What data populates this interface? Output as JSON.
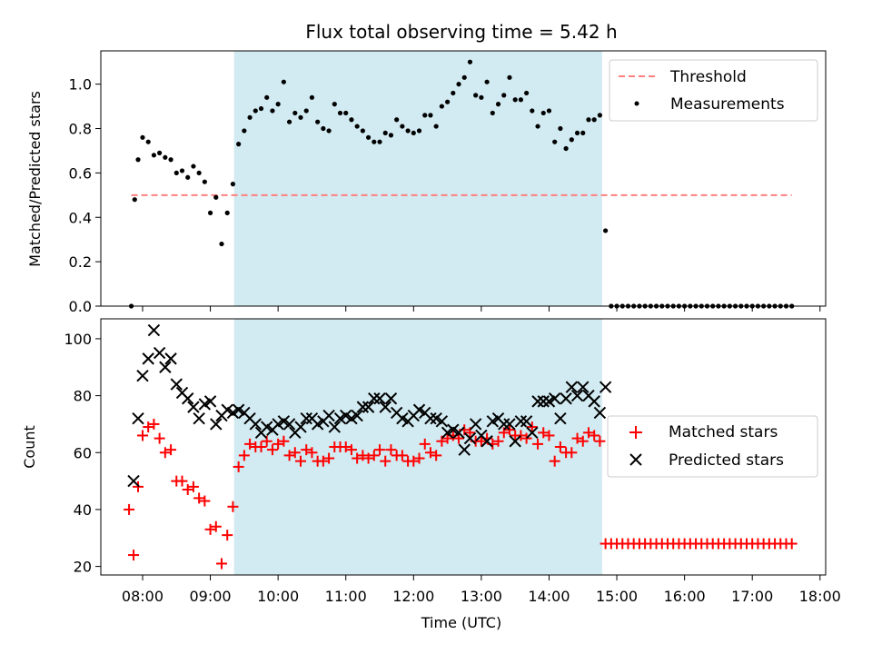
{
  "chart_data": [
    {
      "type": "scatter",
      "title": "Flux total observing time = 5.42 h",
      "ylabel": "Matched/Predicted stars",
      "xlim": [
        "07:23",
        "18:05"
      ],
      "ylim": [
        0,
        1.15
      ],
      "yticks": [
        "0.0",
        "0.2",
        "0.4",
        "0.6",
        "0.8",
        "1.0"
      ],
      "shaded_interval": [
        "09:21",
        "14:47"
      ],
      "shade_color": "#add8e6",
      "legend_position": "top-right",
      "threshold": {
        "name": "Threshold",
        "value": 0.5,
        "x_range": [
          "07:50",
          "17:35"
        ],
        "color": "#ff7f7f"
      },
      "series": [
        {
          "name": "Measurements",
          "color": "#000000",
          "marker": "dot",
          "x": [
            "07:50",
            "07:53",
            "07:56",
            "08:00",
            "08:05",
            "08:10",
            "08:15",
            "08:20",
            "08:25",
            "08:30",
            "08:35",
            "08:40",
            "08:45",
            "08:50",
            "08:55",
            "09:00",
            "09:05",
            "09:10",
            "09:15",
            "09:20",
            "09:25",
            "09:30",
            "09:35",
            "09:40",
            "09:45",
            "09:50",
            "09:55",
            "10:00",
            "10:05",
            "10:10",
            "10:15",
            "10:20",
            "10:25",
            "10:30",
            "10:35",
            "10:40",
            "10:45",
            "10:50",
            "10:55",
            "11:00",
            "11:05",
            "11:10",
            "11:15",
            "11:20",
            "11:25",
            "11:30",
            "11:35",
            "11:40",
            "11:45",
            "11:50",
            "11:55",
            "12:00",
            "12:05",
            "12:10",
            "12:15",
            "12:20",
            "12:25",
            "12:30",
            "12:35",
            "12:40",
            "12:45",
            "12:50",
            "12:55",
            "13:00",
            "13:05",
            "13:10",
            "13:15",
            "13:20",
            "13:25",
            "13:30",
            "13:35",
            "13:40",
            "13:45",
            "13:50",
            "13:55",
            "14:00",
            "14:05",
            "14:10",
            "14:15",
            "14:20",
            "14:25",
            "14:30",
            "14:35",
            "14:40",
            "14:45",
            "14:50",
            "14:55",
            "15:00",
            "15:05",
            "15:10",
            "15:15",
            "15:20",
            "15:25",
            "15:30",
            "15:35",
            "15:40",
            "15:45",
            "15:50",
            "15:55",
            "16:00",
            "16:05",
            "16:10",
            "16:15",
            "16:20",
            "16:25",
            "16:30",
            "16:35",
            "16:40",
            "16:45",
            "16:50",
            "16:55",
            "17:00",
            "17:05",
            "17:10",
            "17:15",
            "17:20",
            "17:25",
            "17:30",
            "17:35"
          ],
          "y": [
            0.0,
            0.48,
            0.66,
            0.76,
            0.74,
            0.68,
            0.69,
            0.67,
            0.66,
            0.6,
            0.61,
            0.58,
            0.63,
            0.6,
            0.56,
            0.42,
            0.49,
            0.28,
            0.42,
            0.55,
            0.73,
            0.79,
            0.85,
            0.88,
            0.89,
            0.94,
            0.88,
            0.91,
            1.01,
            0.83,
            0.87,
            0.85,
            0.88,
            0.94,
            0.83,
            0.8,
            0.79,
            0.91,
            0.87,
            0.87,
            0.84,
            0.81,
            0.79,
            0.76,
            0.74,
            0.74,
            0.78,
            0.77,
            0.84,
            0.81,
            0.79,
            0.78,
            0.79,
            0.86,
            0.86,
            0.81,
            0.9,
            0.92,
            0.96,
            1.0,
            1.03,
            1.1,
            0.95,
            0.94,
            1.01,
            0.87,
            0.91,
            0.95,
            1.03,
            0.93,
            0.93,
            0.96,
            0.88,
            0.81,
            0.87,
            0.88,
            0.74,
            0.8,
            0.71,
            0.75,
            0.78,
            0.78,
            0.84,
            0.84,
            0.86,
            0.34,
            0.0,
            0.0,
            0.0,
            0.0,
            0.0,
            0.0,
            0.0,
            0.0,
            0.0,
            0.0,
            0.0,
            0.0,
            0.0,
            0.0,
            0.0,
            0.0,
            0.0,
            0.0,
            0.0,
            0.0,
            0.0,
            0.0,
            0.0,
            0.0,
            0.0,
            0.0,
            0.0,
            0.0,
            0.0,
            0.0,
            0.0,
            0.0,
            0.0
          ]
        }
      ]
    },
    {
      "type": "scatter",
      "xlabel": "Time (UTC)",
      "ylabel": "Count",
      "xlim": [
        "07:23",
        "18:05"
      ],
      "ylim": [
        17,
        107
      ],
      "yticks": [
        "20",
        "40",
        "60",
        "80",
        "100"
      ],
      "xticks": [
        "08:00",
        "09:00",
        "10:00",
        "11:00",
        "12:00",
        "13:00",
        "14:00",
        "15:00",
        "16:00",
        "17:00",
        "18:00"
      ],
      "shaded_interval": [
        "09:21",
        "14:47"
      ],
      "shade_color": "#add8e6",
      "legend_position": "center-right",
      "series": [
        {
          "name": "Matched stars",
          "color": "#ff0000",
          "marker": "plus",
          "x": [
            "07:48",
            "07:52",
            "07:56",
            "08:00",
            "08:05",
            "08:10",
            "08:15",
            "08:20",
            "08:25",
            "08:30",
            "08:35",
            "08:40",
            "08:45",
            "08:50",
            "08:55",
            "09:00",
            "09:05",
            "09:10",
            "09:15",
            "09:20",
            "09:25",
            "09:30",
            "09:35",
            "09:40",
            "09:45",
            "09:50",
            "09:55",
            "10:00",
            "10:05",
            "10:10",
            "10:15",
            "10:20",
            "10:25",
            "10:30",
            "10:35",
            "10:40",
            "10:45",
            "10:50",
            "10:55",
            "11:00",
            "11:05",
            "11:10",
            "11:15",
            "11:20",
            "11:25",
            "11:30",
            "11:35",
            "11:40",
            "11:45",
            "11:50",
            "11:55",
            "12:00",
            "12:05",
            "12:10",
            "12:15",
            "12:20",
            "12:25",
            "12:30",
            "12:35",
            "12:40",
            "12:45",
            "12:50",
            "12:55",
            "13:00",
            "13:05",
            "13:10",
            "13:15",
            "13:20",
            "13:25",
            "13:30",
            "13:35",
            "13:40",
            "13:45",
            "13:50",
            "13:55",
            "14:00",
            "14:05",
            "14:10",
            "14:15",
            "14:20",
            "14:25",
            "14:30",
            "14:35",
            "14:40",
            "14:45",
            "14:50",
            "14:55",
            "15:00",
            "15:05",
            "15:10",
            "15:15",
            "15:20",
            "15:25",
            "15:30",
            "15:35",
            "15:40",
            "15:45",
            "15:50",
            "15:55",
            "16:00",
            "16:05",
            "16:10",
            "16:15",
            "16:20",
            "16:25",
            "16:30",
            "16:35",
            "16:40",
            "16:45",
            "16:50",
            "16:55",
            "17:00",
            "17:05",
            "17:10",
            "17:15",
            "17:20",
            "17:25",
            "17:30",
            "17:35"
          ],
          "y": [
            40,
            24,
            48,
            66,
            69,
            70,
            65,
            60,
            61,
            50,
            50,
            47,
            48,
            44,
            43,
            33,
            34,
            21,
            31,
            41,
            55,
            59,
            63,
            62,
            62,
            64,
            61,
            63,
            64,
            59,
            60,
            57,
            61,
            60,
            57,
            57,
            58,
            62,
            62,
            62,
            61,
            58,
            59,
            58,
            59,
            61,
            57,
            61,
            59,
            59,
            57,
            57,
            58,
            63,
            60,
            59,
            64,
            65,
            66,
            65,
            68,
            67,
            64,
            64,
            65,
            63,
            64,
            67,
            68,
            66,
            66,
            65,
            69,
            63,
            67,
            66,
            57,
            62,
            60,
            60,
            65,
            64,
            67,
            66,
            64,
            28,
            28,
            28,
            28,
            28,
            28,
            28,
            28,
            28,
            28,
            28,
            28,
            28,
            28,
            28,
            28,
            28,
            28,
            28,
            28,
            28,
            28,
            28,
            28,
            28,
            28,
            28,
            28,
            28,
            28,
            28,
            28,
            28,
            28
          ]
        },
        {
          "name": "Predicted stars",
          "color": "#000000",
          "marker": "x",
          "x": [
            "07:52",
            "07:56",
            "08:00",
            "08:05",
            "08:10",
            "08:15",
            "08:20",
            "08:25",
            "08:30",
            "08:35",
            "08:40",
            "08:45",
            "08:50",
            "08:55",
            "09:00",
            "09:05",
            "09:10",
            "09:15",
            "09:20",
            "09:25",
            "09:30",
            "09:35",
            "09:40",
            "09:45",
            "09:50",
            "09:55",
            "10:00",
            "10:05",
            "10:10",
            "10:15",
            "10:20",
            "10:25",
            "10:30",
            "10:35",
            "10:40",
            "10:45",
            "10:50",
            "10:55",
            "11:00",
            "11:05",
            "11:10",
            "11:15",
            "11:20",
            "11:25",
            "11:30",
            "11:35",
            "11:40",
            "11:45",
            "11:50",
            "11:55",
            "12:00",
            "12:05",
            "12:10",
            "12:15",
            "12:20",
            "12:25",
            "12:30",
            "12:35",
            "12:40",
            "12:45",
            "12:50",
            "12:55",
            "13:00",
            "13:05",
            "13:10",
            "13:15",
            "13:20",
            "13:25",
            "13:30",
            "13:35",
            "13:40",
            "13:45",
            "13:50",
            "13:55",
            "14:00",
            "14:05",
            "14:10",
            "14:15",
            "14:20",
            "14:25",
            "14:30",
            "14:35",
            "14:40",
            "14:45",
            "14:50"
          ],
          "y": [
            50,
            72,
            87,
            93,
            103,
            95,
            90,
            93,
            84,
            81,
            79,
            76,
            72,
            77,
            78,
            70,
            73,
            75,
            74,
            75,
            74,
            72,
            70,
            67,
            69,
            68,
            70,
            71,
            70,
            67,
            69,
            72,
            72,
            70,
            71,
            73,
            69,
            72,
            73,
            72,
            73,
            76,
            76,
            79,
            79,
            76,
            79,
            74,
            72,
            71,
            73,
            75,
            74,
            72,
            72,
            71,
            67,
            68,
            67,
            61,
            65,
            70,
            66,
            64,
            71,
            72,
            70,
            70,
            64,
            71,
            71,
            67,
            78,
            78,
            78,
            79,
            72,
            79,
            83,
            80,
            83,
            80,
            78,
            74,
            83
          ]
        }
      ]
    }
  ]
}
